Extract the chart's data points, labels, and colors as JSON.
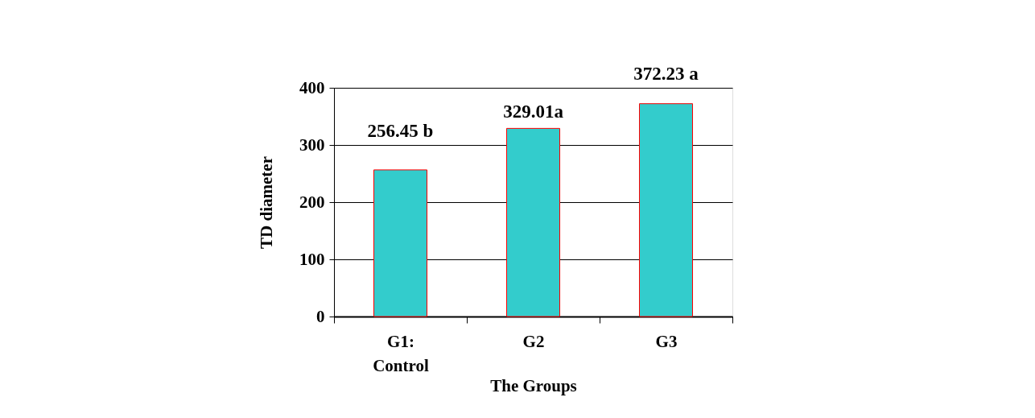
{
  "chart_data": {
    "type": "bar",
    "categories": [
      "G1: Control",
      "G2",
      "G3"
    ],
    "values": [
      256.45,
      329.01,
      372.23
    ],
    "value_labels": [
      "256.45 b",
      "329.01a",
      "372.23 a"
    ],
    "color": "#33cccc",
    "xlabel": "The Groups",
    "ylabel": "TD diameter",
    "ylim": [
      0,
      400
    ],
    "yticks": [
      0,
      100,
      200,
      300,
      400
    ],
    "grid": "y"
  }
}
